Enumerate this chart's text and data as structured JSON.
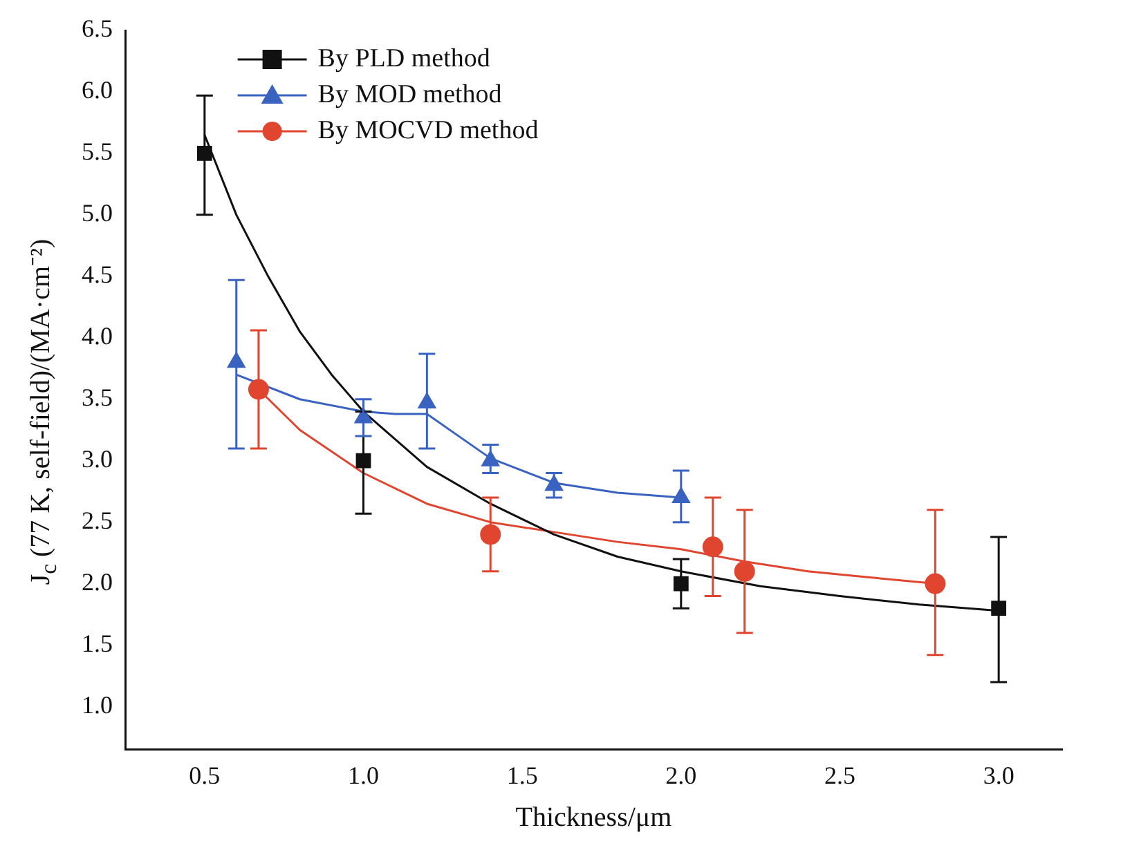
{
  "chart_data": {
    "type": "scatter",
    "xlabel": "Thickness/μm",
    "ylabel": "J$_{c}$ (77 K, self-field)/(MA·cm⁻²)",
    "xlim": [
      0.25,
      3.2
    ],
    "xticks": [
      {
        "value": 0.5,
        "label": "0.5"
      },
      {
        "value": 1.0,
        "label": "1.0"
      },
      {
        "value": 1.5,
        "label": "1.5"
      },
      {
        "value": 2.0,
        "label": "2.0"
      },
      {
        "value": 2.5,
        "label": "2.5"
      },
      {
        "value": 3.0,
        "label": "3.0"
      }
    ],
    "ylim": [
      0.65,
      6.5
    ],
    "yticks": [
      {
        "value": 1.0,
        "label": "1.0"
      },
      {
        "value": 1.5,
        "label": "1.5"
      },
      {
        "value": 2.0,
        "label": "2.0"
      },
      {
        "value": 2.5,
        "label": "2.5"
      },
      {
        "value": 3.0,
        "label": "3.0"
      },
      {
        "value": 3.5,
        "label": "3.5"
      },
      {
        "value": 4.0,
        "label": "4.0"
      },
      {
        "value": 4.5,
        "label": "4.5"
      },
      {
        "value": 5.0,
        "label": "5.0"
      },
      {
        "value": 5.5,
        "label": "5.5"
      },
      {
        "value": 6.0,
        "label": "6.0"
      },
      {
        "value": 6.5,
        "label": "6.5"
      }
    ],
    "grid": false,
    "legend": "top left",
    "series": [
      {
        "name": "By PLD method",
        "color": "#111111",
        "marker": "square",
        "x": [
          0.5,
          1.0,
          2.0,
          3.0
        ],
        "values": [
          5.5,
          3.0,
          2.0,
          1.8
        ],
        "errors": [
          [
            5.0,
            5.97
          ],
          [
            2.57,
            3.4
          ],
          [
            1.8,
            2.2
          ],
          [
            1.2,
            2.38
          ]
        ]
      },
      {
        "name": "By MOD method",
        "color": "#3a62c0",
        "marker": "triangle",
        "x": [
          0.6,
          1.0,
          1.2,
          1.4,
          1.6,
          2.0
        ],
        "values": [
          3.8,
          3.35,
          3.47,
          3.0,
          2.8,
          2.7
        ],
        "errors": [
          [
            3.1,
            4.47
          ],
          [
            3.2,
            3.5
          ],
          [
            3.1,
            3.87
          ],
          [
            2.9,
            3.13
          ],
          [
            2.7,
            2.9
          ],
          [
            2.5,
            2.92
          ]
        ]
      },
      {
        "name": "By MOCVD method",
        "color": "#e0452f",
        "marker": "circle",
        "x": [
          0.67,
          1.4,
          2.1,
          2.2,
          2.8
        ],
        "values": [
          3.58,
          2.4,
          2.3,
          2.1,
          2.0
        ],
        "errors": [
          [
            3.1,
            4.06
          ],
          [
            2.1,
            2.7
          ],
          [
            1.9,
            2.7
          ],
          [
            1.6,
            2.6
          ],
          [
            1.42,
            2.6
          ]
        ]
      },
      {
        "type": "line",
        "color": "#111111",
        "marker": "none",
        "x": [
          0.5,
          0.6,
          0.7,
          0.8,
          0.9,
          1.0,
          1.2,
          1.4,
          1.6,
          1.8,
          2.0,
          2.25,
          2.5,
          2.75,
          3.0
        ],
        "values": [
          5.65,
          5.0,
          4.5,
          4.05,
          3.7,
          3.4,
          2.95,
          2.65,
          2.4,
          2.22,
          2.1,
          1.98,
          1.9,
          1.83,
          1.78
        ]
      },
      {
        "type": "line",
        "color": "#3a62c0",
        "marker": "none",
        "x": [
          0.6,
          0.8,
          1.0,
          1.1,
          1.2,
          1.3,
          1.4,
          1.6,
          1.8,
          2.0
        ],
        "values": [
          3.7,
          3.5,
          3.4,
          3.38,
          3.38,
          3.2,
          3.02,
          2.82,
          2.74,
          2.7
        ]
      },
      {
        "type": "line",
        "color": "#e0452f",
        "marker": "none",
        "x": [
          0.67,
          0.8,
          1.0,
          1.2,
          1.4,
          1.6,
          1.8,
          2.0,
          2.2,
          2.4,
          2.6,
          2.8
        ],
        "values": [
          3.58,
          3.25,
          2.9,
          2.65,
          2.5,
          2.42,
          2.34,
          2.28,
          2.18,
          2.1,
          2.05,
          2.0
        ]
      }
    ]
  }
}
